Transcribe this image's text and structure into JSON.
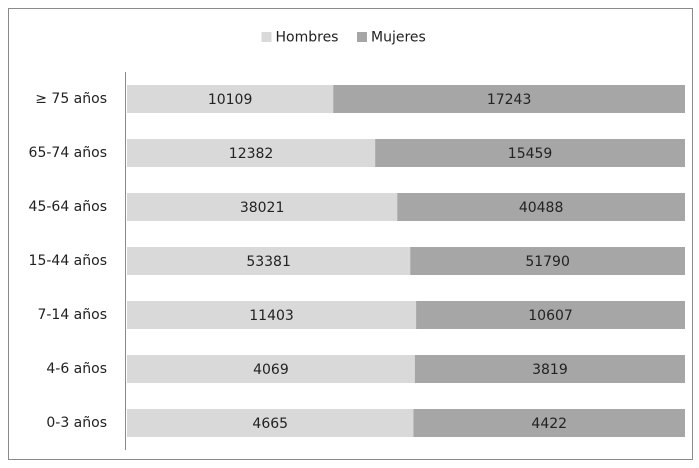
{
  "chart_data": {
    "type": "bar",
    "orientation": "horizontal",
    "stacked": "percent",
    "categories": [
      "≥ 75 años",
      "65-74 años",
      "45-64 años",
      "15-44 años",
      "7-14 años",
      "4-6 años",
      "0-3 años"
    ],
    "series": [
      {
        "name": "Hombres",
        "color": "#d9d9d9",
        "values": [
          10109,
          12382,
          38021,
          53381,
          11403,
          4069,
          4665
        ]
      },
      {
        "name": "Mujeres",
        "color": "#a6a6a6",
        "values": [
          17243,
          15459,
          40488,
          51790,
          10607,
          3819,
          4422
        ]
      }
    ],
    "legend": "top"
  }
}
